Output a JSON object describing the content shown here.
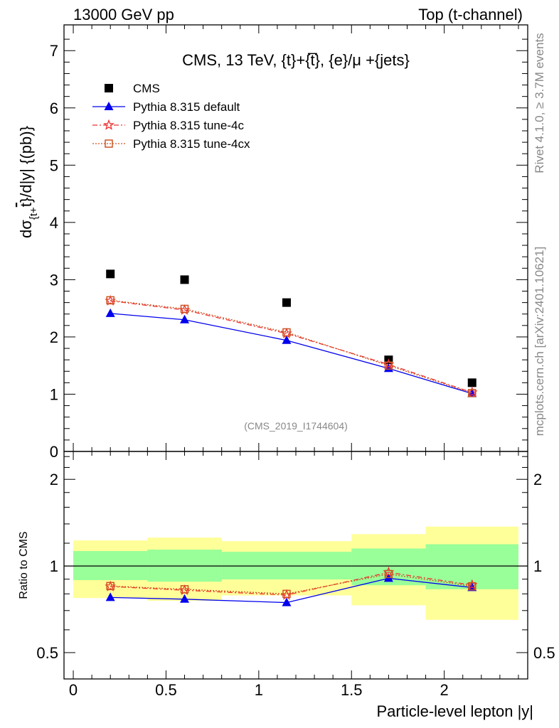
{
  "header": {
    "left": "13000 GeV pp",
    "right": "Top (t-channel)"
  },
  "side_text": {
    "rivet": "Rivet 4.1.0, ≥ 3.7M events",
    "mcplots": "mcplots.cern.ch [arXiv:2401.10621]"
  },
  "analysis_id": "(CMS_2019_I1744604)",
  "colors": {
    "data": "#000000",
    "default": "#0000ee",
    "tune4c": "#ee3333",
    "tune4cx": "#cc5522",
    "band_total": "#ffff99",
    "band_stat": "#99ff99"
  },
  "chart_data": [
    {
      "type": "line",
      "title": "CMS, 13 TeV, {t}+{t̅}, {e}/μ +{jets}",
      "ylabel": {
        "main": "dσ",
        "sub": "{t+",
        "bar": "t",
        "rest": "}/d|y|  {(pb)}"
      },
      "xlabel": "Particle-level lepton |y|",
      "xlim": [
        -0.05,
        2.45
      ],
      "ylim": [
        0,
        7.45
      ],
      "yticks": [
        "0",
        "1",
        "2",
        "3",
        "4",
        "5",
        "6",
        "7"
      ],
      "x": [
        0.2,
        0.6,
        1.15,
        1.7,
        2.15
      ],
      "bin_edges": [
        0,
        0.4,
        0.8,
        1.5,
        1.9,
        2.4
      ],
      "legend_position": "top-left",
      "series": [
        {
          "name": "CMS",
          "key": "data",
          "marker": "square",
          "values": [
            3.1,
            3.0,
            2.6,
            1.6,
            1.2
          ]
        },
        {
          "name": "Pythia 8.315 default",
          "key": "default",
          "marker": "triangle",
          "values": [
            2.41,
            2.3,
            1.94,
            1.45,
            1.01
          ]
        },
        {
          "name": "Pythia 8.315 tune-4c",
          "key": "tune4c",
          "marker": "star",
          "values": [
            2.63,
            2.47,
            2.06,
            1.52,
            1.03
          ]
        },
        {
          "name": "Pythia 8.315 tune-4cx",
          "key": "tune4cx",
          "marker": "open-square",
          "values": [
            2.64,
            2.49,
            2.08,
            1.5,
            1.02
          ]
        }
      ]
    },
    {
      "type": "line",
      "ylabel": "Ratio to CMS",
      "yscale": "log",
      "ylim": [
        0.405,
        2.5
      ],
      "yticks": [
        "0.5",
        "1",
        "2"
      ],
      "xticks": [
        "0",
        "0.5",
        "1",
        "1.5",
        "2"
      ],
      "band_total": [
        [
          0.774,
          1.227
        ],
        [
          0.757,
          1.255
        ],
        [
          0.79,
          1.22
        ],
        [
          0.73,
          1.29
        ],
        [
          0.65,
          1.37
        ]
      ],
      "band_stat": [
        [
          0.893,
          1.127
        ],
        [
          0.882,
          1.14
        ],
        [
          0.898,
          1.12
        ],
        [
          0.857,
          1.15
        ],
        [
          0.83,
          1.19
        ]
      ]
    }
  ]
}
